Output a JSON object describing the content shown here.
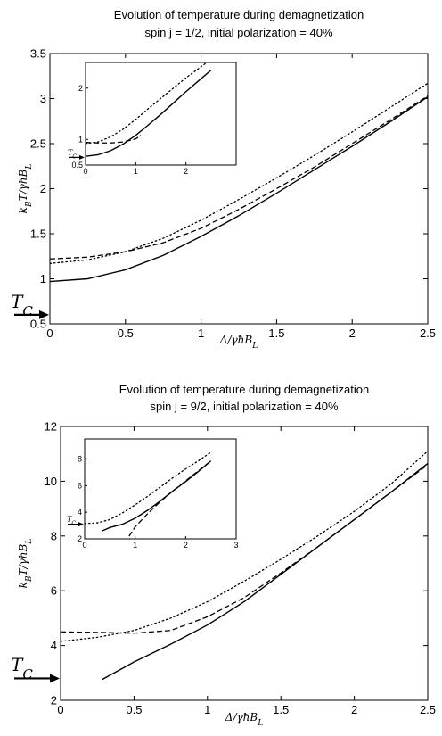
{
  "chart_data": [
    {
      "type": "line",
      "title_lines": [
        "Evolution of temperature during demagnetization",
        "spin j = 1/2,   initial polarization = 40%"
      ],
      "xlabel": "Δ/γħB_L",
      "ylabel": "k_BT/γħB_L",
      "xlim": [
        0,
        2.5
      ],
      "ylim": [
        0.5,
        3.5
      ],
      "xticks": [
        0,
        0.5,
        1,
        1.5,
        2,
        2.5
      ],
      "xtick_labels": [
        "0",
        "0.5",
        "1",
        "1.5",
        "2",
        "2.5"
      ],
      "yticks": [
        0.5,
        1,
        1.5,
        2,
        2.5,
        3,
        3.5
      ],
      "ytick_labels": [
        "0.5",
        "1",
        "1.5",
        "2",
        "2.5",
        "3",
        "3.5"
      ],
      "grid": false,
      "tc_label": "T_C",
      "tc_value": 0.6,
      "series": [
        {
          "style": "solid",
          "x": [
            0,
            0.25,
            0.5,
            0.75,
            1,
            1.25,
            1.5,
            1.75,
            2,
            2.25,
            2.5
          ],
          "y": [
            0.97,
            1.0,
            1.1,
            1.26,
            1.47,
            1.7,
            1.95,
            2.21,
            2.47,
            2.74,
            3.02
          ]
        },
        {
          "style": "dashed",
          "x": [
            0,
            0.25,
            0.5,
            0.75,
            1,
            1.25,
            1.5,
            1.75,
            2,
            2.25,
            2.5
          ],
          "y": [
            1.22,
            1.24,
            1.3,
            1.4,
            1.56,
            1.77,
            2.0,
            2.24,
            2.5,
            2.76,
            3.03
          ]
        },
        {
          "style": "dotted",
          "x": [
            0,
            0.25,
            0.5,
            0.75,
            1,
            1.25,
            1.5,
            1.75,
            2,
            2.25,
            2.5
          ],
          "y": [
            1.17,
            1.21,
            1.3,
            1.45,
            1.65,
            1.88,
            2.12,
            2.37,
            2.63,
            2.9,
            3.17
          ]
        }
      ],
      "inset": {
        "xlim": [
          0,
          3
        ],
        "ylim": [
          0.5,
          2.5
        ],
        "xticks": [
          0,
          1,
          2
        ],
        "xtick_labels": [
          "0",
          "1",
          "2"
        ],
        "yticks": [
          0.5,
          1,
          2
        ],
        "ytick_labels": [
          "0.5",
          "1",
          "2"
        ],
        "tc_label": "T_C",
        "tc_value": 0.65,
        "series": [
          {
            "style": "solid",
            "x": [
              0,
              0.25,
              0.5,
              0.75,
              1,
              1.25,
              1.5,
              1.75,
              2,
              2.25,
              2.5
            ],
            "y": [
              0.67,
              0.7,
              0.78,
              0.91,
              1.08,
              1.28,
              1.49,
              1.71,
              1.93,
              2.14,
              2.35
            ]
          },
          {
            "style": "dashed",
            "x": [
              0,
              0.25,
              0.5,
              0.75,
              1,
              1.1
            ],
            "y": [
              0.94,
              0.93,
              0.93,
              0.95,
              1.01,
              1.08
            ]
          },
          {
            "style": "dotted",
            "x": [
              0,
              0.25,
              0.5,
              0.75,
              1,
              1.25,
              1.5,
              1.75,
              2,
              2.25,
              2.5
            ],
            "y": [
              0.92,
              0.95,
              1.05,
              1.2,
              1.39,
              1.6,
              1.8,
              2.0,
              2.2,
              2.38,
              2.56
            ]
          }
        ]
      }
    },
    {
      "type": "line",
      "title_lines": [
        "Evolution of temperature during demagnetization",
        "spin j = 9/2,   initial polarization = 40%"
      ],
      "xlabel": "Δ/γħB_L",
      "ylabel": "k_BT/γħB_L",
      "xlim": [
        0,
        2.5
      ],
      "ylim": [
        2,
        12
      ],
      "xticks": [
        0,
        0.5,
        1,
        1.5,
        2,
        2.5
      ],
      "xtick_labels": [
        "0",
        "0.5",
        "1",
        "1.5",
        "2",
        "2.5"
      ],
      "yticks": [
        2,
        4,
        6,
        8,
        10,
        12
      ],
      "ytick_labels": [
        "2",
        "4",
        "6",
        "8",
        "10",
        "12"
      ],
      "grid": false,
      "tc_label": "T_C",
      "tc_value": 2.8,
      "series": [
        {
          "style": "solid",
          "x": [
            0.28,
            0.5,
            0.75,
            1,
            1.25,
            1.5,
            1.75,
            2,
            2.25,
            2.5
          ],
          "y": [
            2.75,
            3.4,
            4.05,
            4.75,
            5.6,
            6.6,
            7.6,
            8.6,
            9.6,
            10.65
          ]
        },
        {
          "style": "dashed",
          "x": [
            0,
            0.25,
            0.5,
            0.75,
            1,
            1.25,
            1.5,
            1.75,
            2,
            2.25,
            2.5
          ],
          "y": [
            4.5,
            4.48,
            4.45,
            4.55,
            5.05,
            5.75,
            6.65,
            7.6,
            8.6,
            9.6,
            10.6
          ]
        },
        {
          "style": "dotted",
          "x": [
            0,
            0.25,
            0.5,
            0.75,
            1,
            1.25,
            1.5,
            1.75,
            2,
            2.25,
            2.5
          ],
          "y": [
            4.15,
            4.3,
            4.55,
            5.0,
            5.6,
            6.35,
            7.15,
            8.0,
            8.9,
            9.9,
            11.1
          ]
        }
      ],
      "inset": {
        "xlim": [
          0,
          3
        ],
        "ylim": [
          2,
          9.5
        ],
        "xticks": [
          0,
          1,
          2,
          3
        ],
        "xtick_labels": [
          "0",
          "1",
          "2",
          "3"
        ],
        "yticks": [
          2,
          4,
          6,
          8
        ],
        "ytick_labels": [
          "2",
          "4",
          "6",
          "8"
        ],
        "tc_label": "T_C",
        "tc_value": 3.1,
        "series": [
          {
            "style": "solid",
            "x": [
              0.35,
              0.5,
              0.75,
              1,
              1.25,
              1.5,
              1.75,
              2,
              2.25,
              2.5
            ],
            "y": [
              2.6,
              2.85,
              3.1,
              3.55,
              4.15,
              4.85,
              5.6,
              6.3,
              7.05,
              7.85
            ]
          },
          {
            "style": "dashed",
            "x": [
              0.88,
              1,
              1.25,
              1.5,
              1.75,
              2,
              2.25,
              2.5
            ],
            "y": [
              2.2,
              2.9,
              3.9,
              4.8,
              5.6,
              6.35,
              7.1,
              7.85
            ]
          },
          {
            "style": "dotted",
            "x": [
              0,
              0.25,
              0.5,
              0.75,
              1,
              1.25,
              1.5,
              1.75,
              2,
              2.25,
              2.5
            ],
            "y": [
              3.15,
              3.2,
              3.45,
              3.95,
              4.55,
              5.2,
              5.9,
              6.6,
              7.25,
              7.85,
              8.5
            ]
          }
        ]
      }
    }
  ]
}
